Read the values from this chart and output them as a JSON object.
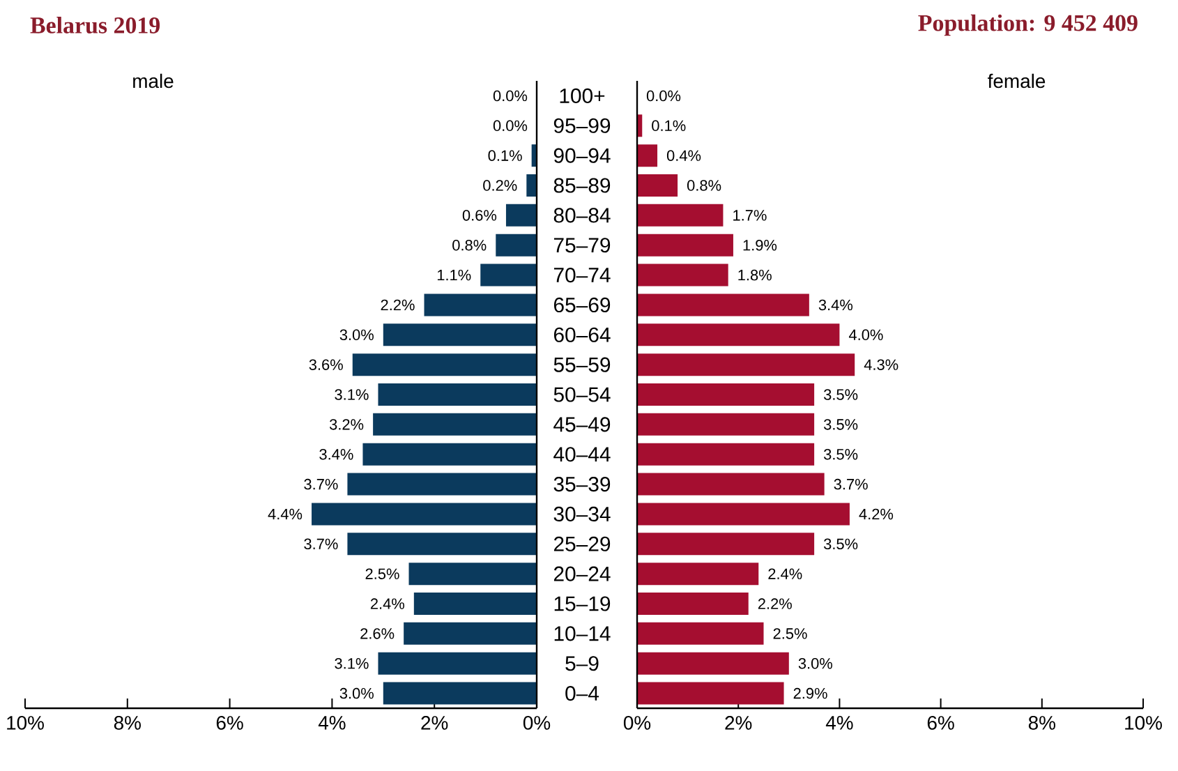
{
  "chart_data": [
    {
      "type": "bar",
      "orientation": "horizontal",
      "title": "Belarus 2019",
      "categories": [
        null,
        null,
        null,
        null,
        null,
        null,
        null,
        null,
        null,
        null,
        null,
        null,
        null,
        null,
        null,
        null,
        null,
        null,
        null,
        null,
        null
      ],
      "tick_labels": "x",
      "series": [
        {
          "name": "male",
          "color": "#0b3a5d",
          "values": [
            0.0,
            0.0,
            0.1,
            0.2,
            0.6,
            0.8,
            1.1,
            2.2,
            3.0,
            3.6,
            3.1,
            3.2,
            3.4,
            3.7,
            4.4,
            3.7,
            2.5,
            2.4,
            2.6,
            3.1,
            3.0
          ],
          "value_labels": [
            "0.0%",
            "0.0%",
            "0.1%",
            "0.2%",
            "0.6%",
            "0.8%",
            "1.1%",
            "2.2%",
            "3.0%",
            "3.6%",
            "3.1%",
            "3.2%",
            "3.4%",
            "3.7%",
            "4.4%",
            "3.7%",
            "2.5%",
            "2.4%",
            "2.6%",
            "3.1%",
            "3.0%"
          ]
        }
      ],
      "xlim": [
        10,
        0
      ],
      "xticks": [
        {
          "value": 10,
          "label": "10%"
        },
        {
          "value": 8,
          "label": "8%"
        },
        {
          "value": 6,
          "label": "6%"
        },
        {
          "value": 4,
          "label": "4%"
        },
        {
          "value": 2,
          "label": "2%"
        },
        {
          "value": 0,
          "label": "0%"
        }
      ]
    },
    {
      "type": "bar",
      "orientation": "horizontal",
      "subtitle": "Population: 9 452 409",
      "categories": [
        "100+",
        "95–99",
        "90–94",
        "85–89",
        "80–84",
        "75–79",
        "70–74",
        "65–69",
        "60–64",
        "55–59",
        "50–54",
        "45–49",
        "40–44",
        "35–39",
        "30–34",
        "25–29",
        "20–24",
        "15–19",
        "10–14",
        "5–9",
        "0–4"
      ],
      "series": [
        {
          "name": "female",
          "color": "#a50e30",
          "values": [
            0.0,
            0.1,
            0.4,
            0.8,
            1.7,
            1.9,
            1.8,
            3.4,
            4.0,
            4.3,
            3.5,
            3.5,
            3.5,
            3.7,
            4.2,
            3.5,
            2.4,
            2.2,
            2.5,
            3.0,
            2.9
          ],
          "value_labels": [
            "0.0%",
            "0.1%",
            "0.4%",
            "0.8%",
            "1.7%",
            "1.9%",
            "1.8%",
            "3.4%",
            "4.0%",
            "4.3%",
            "3.5%",
            "3.5%",
            "3.5%",
            "3.7%",
            "4.2%",
            "3.5%",
            "2.4%",
            "2.2%",
            "2.5%",
            "3.0%",
            "2.9%"
          ]
        }
      ],
      "xlim": [
        0,
        10
      ],
      "xticks": [
        {
          "value": 0,
          "label": "0%"
        },
        {
          "value": 2,
          "label": "2%"
        },
        {
          "value": 4,
          "label": "4%"
        },
        {
          "value": 6,
          "label": "6%"
        },
        {
          "value": 8,
          "label": "8%"
        },
        {
          "value": 10,
          "label": "10%"
        }
      ]
    }
  ]
}
